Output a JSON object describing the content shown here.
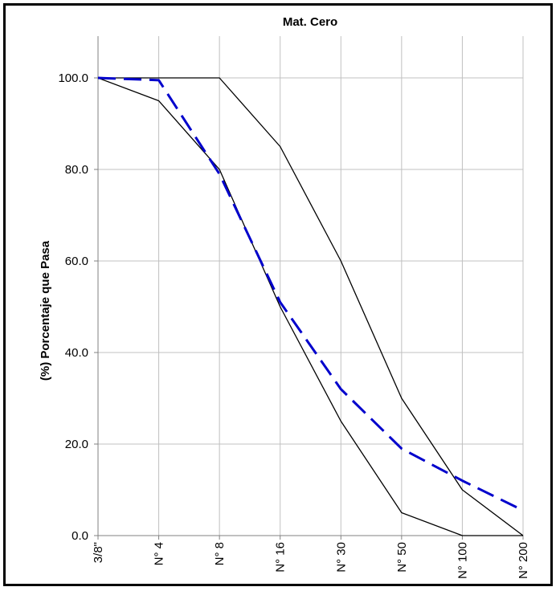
{
  "chart_data": {
    "type": "line",
    "title": "Mat. Cero",
    "xlabel": "",
    "ylabel": "(%) Porcentaje que Pasa",
    "categories": [
      "3/8\"",
      "N° 4",
      "N° 8",
      "N° 16",
      "N° 30",
      "N° 50",
      "N° 100",
      "N° 200"
    ],
    "ylim": [
      0,
      100
    ],
    "yticks": [
      "0.0",
      "20.0",
      "40.0",
      "60.0",
      "80.0",
      "100.0"
    ],
    "grid": true,
    "legend": "none",
    "series": [
      {
        "values": [
          100,
          100,
          100,
          85,
          60,
          30,
          10,
          0
        ],
        "color": "#000000",
        "style": "solid"
      },
      {
        "values": [
          100,
          95,
          80,
          50,
          25,
          5,
          0,
          0
        ],
        "color": "#000000",
        "style": "solid"
      },
      {
        "values": [
          100,
          99.5,
          79,
          51,
          32,
          19,
          12,
          5.5
        ],
        "color": "#0000CC",
        "style": "dashed"
      }
    ]
  }
}
